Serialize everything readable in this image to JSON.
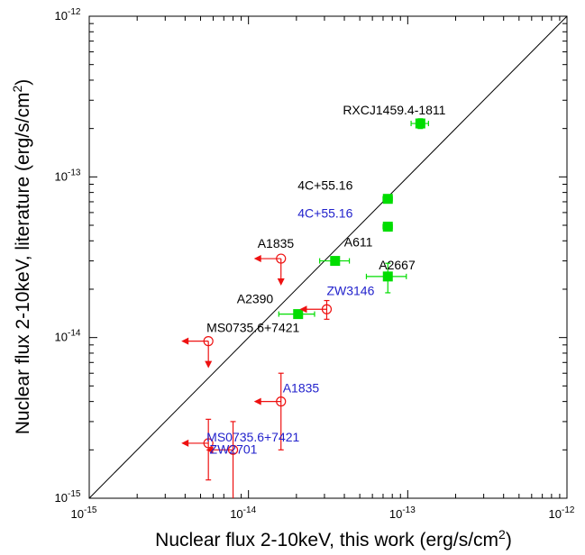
{
  "chart_data": {
    "type": "scatter",
    "title": "",
    "xlabel": "Nuclear flux 2-10keV, this work (erg/s/cm",
    "xlabel_sup": "2",
    "xlabel_end": ")",
    "ylabel": "Nuclear flux 2-10keV, literature (erg/s/cm",
    "ylabel_sup": "2",
    "ylabel_end": ")",
    "xscale": "log",
    "yscale": "log",
    "xlim": [
      1e-15,
      1e-12
    ],
    "ylim": [
      1e-15,
      1e-12
    ],
    "grid": false,
    "reference_line": "y = x",
    "x_ticks": [
      {
        "value": 1e-15,
        "base": "10",
        "exp": "-15"
      },
      {
        "value": 1e-14,
        "base": "10",
        "exp": "-14"
      },
      {
        "value": 1e-13,
        "base": "10",
        "exp": "-13"
      },
      {
        "value": 1e-12,
        "base": "10",
        "exp": "-12"
      }
    ],
    "y_ticks": [
      {
        "value": 1e-15,
        "base": "10",
        "exp": "-15"
      },
      {
        "value": 1e-14,
        "base": "10",
        "exp": "-14"
      },
      {
        "value": 1e-13,
        "base": "10",
        "exp": "-13"
      },
      {
        "value": 1e-12,
        "base": "10",
        "exp": "-12"
      }
    ],
    "colors": {
      "detection": "#00dd00",
      "upper_limit": "#ee1111",
      "black_label": "#000000",
      "blue_label": "#2222cc",
      "one_to_one": "#000000"
    },
    "series": [
      {
        "marker": "filled-square",
        "color": "#00dd00",
        "points": [
          {
            "label": "RXCJ1459.4-1811",
            "label_color": "#000000",
            "x": 1.2e-13,
            "y": 2.15e-13,
            "x_err": [
              1.05e-13,
              1.35e-13
            ],
            "y_err": [
              2e-13,
              2.3e-13
            ]
          },
          {
            "label": "4C+55.16",
            "label_color": "#000000",
            "x": 7.5e-14,
            "y": 7.3e-14,
            "x_err": [
              7e-14,
              8e-14
            ],
            "y_err": [
              7e-14,
              7.6e-14
            ]
          },
          {
            "label": "4C+55.16",
            "label_color": "#2222cc",
            "x": 7.5e-14,
            "y": 4.9e-14,
            "x_err": [
              7e-14,
              8e-14
            ],
            "y_err": [
              4.6e-14,
              5.2e-14
            ]
          },
          {
            "label": "A611",
            "label_color": "#000000",
            "x": 3.5e-14,
            "y": 3e-14,
            "x_err": [
              2.8e-14,
              4.3e-14
            ],
            "y_err": [
              2.85e-14,
              3.15e-14
            ]
          },
          {
            "label": "A2667",
            "label_color": "#000000",
            "x": 7.5e-14,
            "y": 2.4e-14,
            "x_err": [
              5.5e-14,
              9.8e-14
            ],
            "y_err": [
              1.9e-14,
              2.9e-14
            ]
          },
          {
            "label": "A2390",
            "label_color": "#000000",
            "x": 2.05e-14,
            "y": 1.4e-14,
            "x_err": [
              1.55e-14,
              2.6e-14
            ],
            "y_err": [
              1.35e-14,
              1.45e-14
            ]
          }
        ]
      },
      {
        "marker": "open-circle-upper-limit",
        "color": "#ee1111",
        "points": [
          {
            "label": "A1835",
            "label_color": "#000000",
            "x": 1.6e-14,
            "y": 3.1e-14,
            "x_limit": "upper",
            "y_limit": "upper"
          },
          {
            "label": "MS0735.6+7421",
            "label_color": "#000000",
            "x": 5.6e-15,
            "y": 9.5e-15,
            "x_limit": "upper",
            "y_limit": "upper"
          },
          {
            "label": "ZW3146",
            "label_color": "#2222cc",
            "x": 3.1e-14,
            "y": 1.5e-14,
            "x_limit": "upper",
            "y_err": [
              1.3e-14,
              1.7e-14
            ]
          },
          {
            "label": "A1835",
            "label_color": "#2222cc",
            "x": 1.6e-14,
            "y": 4e-15,
            "x_limit": "upper",
            "y_err": [
              2e-15,
              6e-15
            ]
          },
          {
            "label": "MS0735.6+7421",
            "label_color": "#2222cc",
            "x": 5.6e-15,
            "y": 2.2e-15,
            "x_limit": "upper",
            "y_err": [
              1.3e-15,
              3.1e-15
            ]
          },
          {
            "label": "ZW2701",
            "label_color": "#2222cc",
            "x": 8e-15,
            "y": 2e-15,
            "x_limit": "upper",
            "y_err": [
              1e-15,
              3e-15
            ]
          }
        ]
      }
    ]
  }
}
